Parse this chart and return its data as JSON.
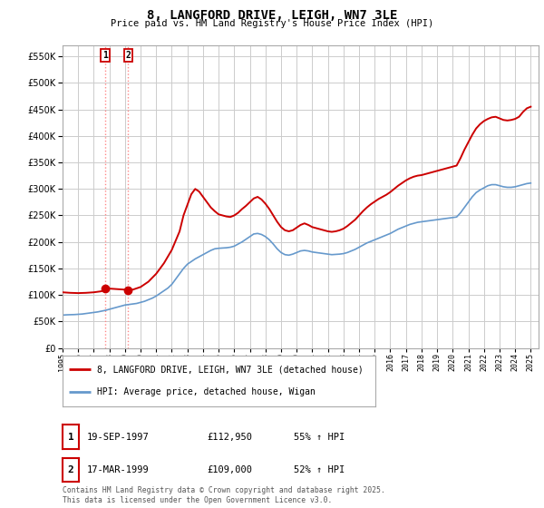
{
  "title": "8, LANGFORD DRIVE, LEIGH, WN7 3LE",
  "subtitle": "Price paid vs. HM Land Registry's House Price Index (HPI)",
  "legend_line1": "8, LANGFORD DRIVE, LEIGH, WN7 3LE (detached house)",
  "legend_line2": "HPI: Average price, detached house, Wigan",
  "sale1_label": "1",
  "sale1_date": "19-SEP-1997",
  "sale1_price": "£112,950",
  "sale1_hpi": "55% ↑ HPI",
  "sale1_year": 1997.72,
  "sale1_value": 112950,
  "sale2_label": "2",
  "sale2_date": "17-MAR-1999",
  "sale2_price": "£109,000",
  "sale2_hpi": "52% ↑ HPI",
  "sale2_year": 1999.21,
  "sale2_value": 109000,
  "price_line_color": "#cc0000",
  "hpi_line_color": "#6699cc",
  "background_color": "#ffffff",
  "grid_color": "#cccccc",
  "ylim": [
    0,
    570000
  ],
  "xlim_start": 1995.0,
  "xlim_end": 2025.5,
  "copyright_text": "Contains HM Land Registry data © Crown copyright and database right 2025.\nThis data is licensed under the Open Government Licence v3.0.",
  "hpi_data": [
    [
      1995.0,
      62000
    ],
    [
      1995.25,
      62500
    ],
    [
      1995.5,
      62800
    ],
    [
      1995.75,
      63000
    ],
    [
      1996.0,
      63500
    ],
    [
      1996.25,
      64000
    ],
    [
      1996.5,
      65000
    ],
    [
      1996.75,
      66000
    ],
    [
      1997.0,
      67000
    ],
    [
      1997.25,
      68000
    ],
    [
      1997.5,
      69500
    ],
    [
      1997.75,
      71000
    ],
    [
      1998.0,
      73000
    ],
    [
      1998.25,
      75000
    ],
    [
      1998.5,
      77000
    ],
    [
      1998.75,
      79000
    ],
    [
      1999.0,
      81000
    ],
    [
      1999.25,
      82000
    ],
    [
      1999.5,
      83000
    ],
    [
      1999.75,
      84000
    ],
    [
      2000.0,
      86000
    ],
    [
      2000.25,
      88000
    ],
    [
      2000.5,
      91000
    ],
    [
      2000.75,
      94000
    ],
    [
      2001.0,
      98000
    ],
    [
      2001.25,
      103000
    ],
    [
      2001.5,
      108000
    ],
    [
      2001.75,
      113000
    ],
    [
      2002.0,
      120000
    ],
    [
      2002.25,
      130000
    ],
    [
      2002.5,
      140000
    ],
    [
      2002.75,
      150000
    ],
    [
      2003.0,
      158000
    ],
    [
      2003.25,
      163000
    ],
    [
      2003.5,
      168000
    ],
    [
      2003.75,
      172000
    ],
    [
      2004.0,
      176000
    ],
    [
      2004.25,
      180000
    ],
    [
      2004.5,
      184000
    ],
    [
      2004.75,
      187000
    ],
    [
      2005.0,
      188000
    ],
    [
      2005.25,
      188500
    ],
    [
      2005.5,
      189000
    ],
    [
      2005.75,
      190000
    ],
    [
      2006.0,
      192000
    ],
    [
      2006.25,
      196000
    ],
    [
      2006.5,
      200000
    ],
    [
      2006.75,
      205000
    ],
    [
      2007.0,
      210000
    ],
    [
      2007.25,
      215000
    ],
    [
      2007.5,
      216000
    ],
    [
      2007.75,
      214000
    ],
    [
      2008.0,
      210000
    ],
    [
      2008.25,
      204000
    ],
    [
      2008.5,
      196000
    ],
    [
      2008.75,
      187000
    ],
    [
      2009.0,
      180000
    ],
    [
      2009.25,
      176000
    ],
    [
      2009.5,
      175000
    ],
    [
      2009.75,
      177000
    ],
    [
      2010.0,
      180000
    ],
    [
      2010.25,
      183000
    ],
    [
      2010.5,
      184000
    ],
    [
      2010.75,
      183000
    ],
    [
      2011.0,
      181000
    ],
    [
      2011.25,
      180000
    ],
    [
      2011.5,
      179000
    ],
    [
      2011.75,
      178000
    ],
    [
      2012.0,
      177000
    ],
    [
      2012.25,
      176000
    ],
    [
      2012.5,
      176500
    ],
    [
      2012.75,
      177000
    ],
    [
      2013.0,
      178000
    ],
    [
      2013.25,
      180000
    ],
    [
      2013.5,
      183000
    ],
    [
      2013.75,
      186000
    ],
    [
      2014.0,
      190000
    ],
    [
      2014.25,
      194000
    ],
    [
      2014.5,
      198000
    ],
    [
      2014.75,
      201000
    ],
    [
      2015.0,
      204000
    ],
    [
      2015.25,
      207000
    ],
    [
      2015.5,
      210000
    ],
    [
      2015.75,
      213000
    ],
    [
      2016.0,
      216000
    ],
    [
      2016.25,
      220000
    ],
    [
      2016.5,
      224000
    ],
    [
      2016.75,
      227000
    ],
    [
      2017.0,
      230000
    ],
    [
      2017.25,
      233000
    ],
    [
      2017.5,
      235000
    ],
    [
      2017.75,
      237000
    ],
    [
      2018.0,
      238000
    ],
    [
      2018.25,
      239000
    ],
    [
      2018.5,
      240000
    ],
    [
      2018.75,
      241000
    ],
    [
      2019.0,
      242000
    ],
    [
      2019.25,
      243000
    ],
    [
      2019.5,
      244000
    ],
    [
      2019.75,
      245000
    ],
    [
      2020.0,
      246000
    ],
    [
      2020.25,
      247000
    ],
    [
      2020.5,
      255000
    ],
    [
      2020.75,
      265000
    ],
    [
      2021.0,
      275000
    ],
    [
      2021.25,
      285000
    ],
    [
      2021.5,
      293000
    ],
    [
      2021.75,
      298000
    ],
    [
      2022.0,
      302000
    ],
    [
      2022.25,
      306000
    ],
    [
      2022.5,
      308000
    ],
    [
      2022.75,
      308000
    ],
    [
      2023.0,
      306000
    ],
    [
      2023.25,
      304000
    ],
    [
      2023.5,
      303000
    ],
    [
      2023.75,
      303000
    ],
    [
      2024.0,
      304000
    ],
    [
      2024.25,
      306000
    ],
    [
      2024.5,
      308000
    ],
    [
      2024.75,
      310000
    ],
    [
      2025.0,
      311000
    ]
  ],
  "price_data": [
    [
      1995.0,
      105000
    ],
    [
      1995.5,
      104000
    ],
    [
      1996.0,
      103500
    ],
    [
      1996.5,
      104000
    ],
    [
      1997.0,
      105000
    ],
    [
      1997.5,
      107000
    ],
    [
      1997.72,
      112950
    ],
    [
      1998.0,
      112000
    ],
    [
      1998.5,
      111000
    ],
    [
      1999.0,
      110000
    ],
    [
      1999.21,
      109000
    ],
    [
      1999.5,
      110000
    ],
    [
      2000.0,
      115000
    ],
    [
      2000.5,
      125000
    ],
    [
      2001.0,
      140000
    ],
    [
      2001.5,
      160000
    ],
    [
      2002.0,
      185000
    ],
    [
      2002.5,
      220000
    ],
    [
      2002.75,
      250000
    ],
    [
      2003.0,
      270000
    ],
    [
      2003.25,
      290000
    ],
    [
      2003.5,
      300000
    ],
    [
      2003.75,
      295000
    ],
    [
      2004.0,
      285000
    ],
    [
      2004.25,
      275000
    ],
    [
      2004.5,
      265000
    ],
    [
      2004.75,
      258000
    ],
    [
      2005.0,
      252000
    ],
    [
      2005.25,
      250000
    ],
    [
      2005.5,
      248000
    ],
    [
      2005.75,
      247000
    ],
    [
      2006.0,
      250000
    ],
    [
      2006.25,
      255000
    ],
    [
      2006.5,
      262000
    ],
    [
      2006.75,
      268000
    ],
    [
      2007.0,
      275000
    ],
    [
      2007.25,
      282000
    ],
    [
      2007.5,
      285000
    ],
    [
      2007.75,
      280000
    ],
    [
      2008.0,
      272000
    ],
    [
      2008.25,
      262000
    ],
    [
      2008.5,
      250000
    ],
    [
      2008.75,
      238000
    ],
    [
      2009.0,
      228000
    ],
    [
      2009.25,
      222000
    ],
    [
      2009.5,
      220000
    ],
    [
      2009.75,
      222000
    ],
    [
      2010.0,
      227000
    ],
    [
      2010.25,
      232000
    ],
    [
      2010.5,
      235000
    ],
    [
      2010.75,
      232000
    ],
    [
      2011.0,
      228000
    ],
    [
      2011.25,
      226000
    ],
    [
      2011.5,
      224000
    ],
    [
      2011.75,
      222000
    ],
    [
      2012.0,
      220000
    ],
    [
      2012.25,
      219000
    ],
    [
      2012.5,
      220000
    ],
    [
      2012.75,
      222000
    ],
    [
      2013.0,
      225000
    ],
    [
      2013.25,
      230000
    ],
    [
      2013.5,
      236000
    ],
    [
      2013.75,
      242000
    ],
    [
      2014.0,
      250000
    ],
    [
      2014.25,
      258000
    ],
    [
      2014.5,
      265000
    ],
    [
      2014.75,
      271000
    ],
    [
      2015.0,
      276000
    ],
    [
      2015.25,
      281000
    ],
    [
      2015.5,
      285000
    ],
    [
      2015.75,
      289000
    ],
    [
      2016.0,
      294000
    ],
    [
      2016.25,
      300000
    ],
    [
      2016.5,
      306000
    ],
    [
      2016.75,
      311000
    ],
    [
      2017.0,
      316000
    ],
    [
      2017.25,
      320000
    ],
    [
      2017.5,
      323000
    ],
    [
      2017.75,
      325000
    ],
    [
      2018.0,
      326000
    ],
    [
      2018.25,
      328000
    ],
    [
      2018.5,
      330000
    ],
    [
      2018.75,
      332000
    ],
    [
      2019.0,
      334000
    ],
    [
      2019.25,
      336000
    ],
    [
      2019.5,
      338000
    ],
    [
      2019.75,
      340000
    ],
    [
      2020.0,
      342000
    ],
    [
      2020.25,
      344000
    ],
    [
      2020.5,
      358000
    ],
    [
      2020.75,
      374000
    ],
    [
      2021.0,
      388000
    ],
    [
      2021.25,
      402000
    ],
    [
      2021.5,
      414000
    ],
    [
      2021.75,
      422000
    ],
    [
      2022.0,
      428000
    ],
    [
      2022.25,
      432000
    ],
    [
      2022.5,
      435000
    ],
    [
      2022.75,
      436000
    ],
    [
      2023.0,
      433000
    ],
    [
      2023.25,
      430000
    ],
    [
      2023.5,
      429000
    ],
    [
      2023.75,
      430000
    ],
    [
      2024.0,
      432000
    ],
    [
      2024.25,
      436000
    ],
    [
      2024.5,
      445000
    ],
    [
      2024.75,
      452000
    ],
    [
      2025.0,
      455000
    ]
  ]
}
